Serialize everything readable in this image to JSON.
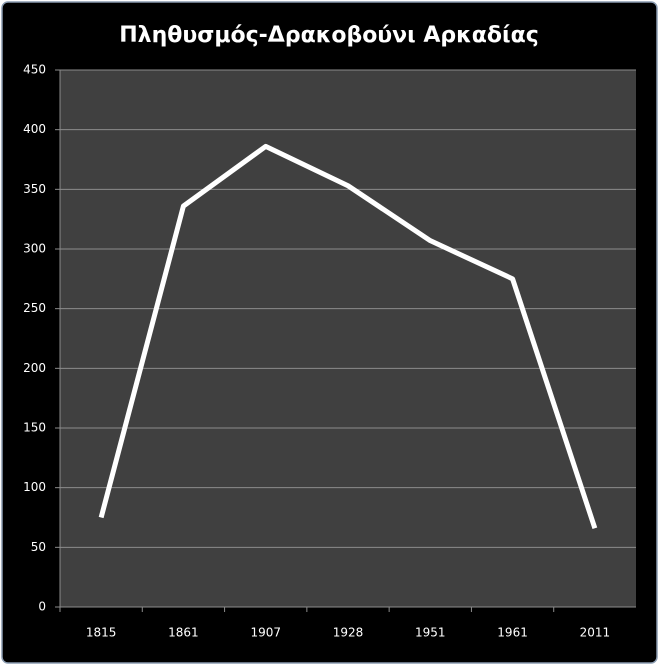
{
  "chart_data": {
    "type": "line",
    "title": "Πληθυσμός-Δρακοβούνι Αρκαδίας",
    "categories": [
      "1815",
      "1861",
      "1907",
      "1928",
      "1951",
      "1961",
      "2011"
    ],
    "series": [
      {
        "name": "Πληθυσμός",
        "color": "#ffffff",
        "values": [
          75,
          336,
          386,
          353,
          307,
          275,
          66
        ]
      }
    ],
    "ylim": [
      0,
      450
    ],
    "yticks": [
      0,
      50,
      100,
      150,
      200,
      250,
      300,
      350,
      400,
      450
    ],
    "grid": true
  }
}
